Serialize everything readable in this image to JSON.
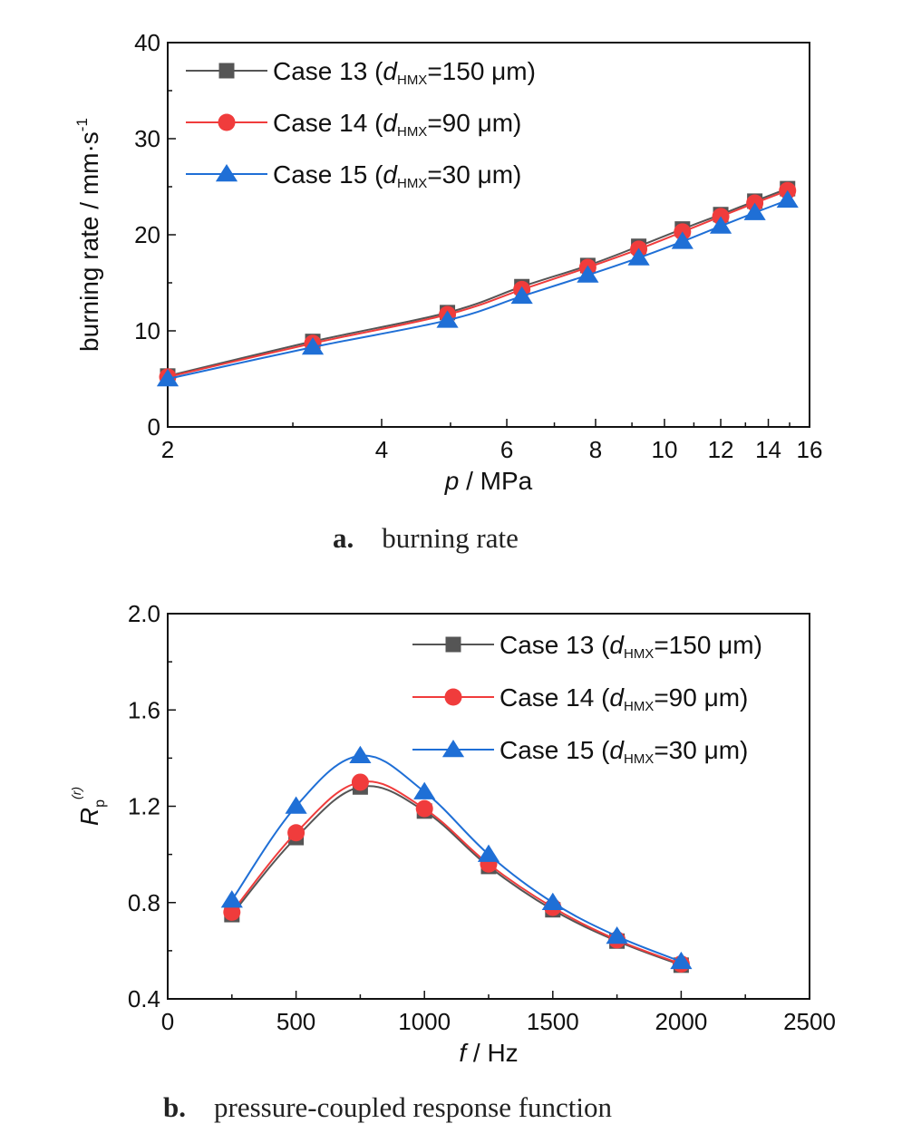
{
  "chart_data": [
    {
      "type": "line",
      "xscale": "log",
      "xlabel_var": "p",
      "xlabel_rest": " / MPa",
      "ylabel": "burning rate / mm·s",
      "ylabel_sup": "-1",
      "xlim": [
        2,
        16
      ],
      "ylim": [
        0,
        40
      ],
      "xticks": [
        2,
        4,
        6,
        8,
        10,
        12,
        14,
        16
      ],
      "yticks": [
        0,
        10,
        20,
        30,
        40
      ],
      "caption_letter": "a.",
      "caption_text": "burning rate",
      "legend_position": "top-left",
      "series": [
        {
          "name": "Case 13",
          "d_label": "d",
          "d_sub": "HMX",
          "d_value": "=150 μm)",
          "name_prefix": "Case 13 (",
          "color": "#555555",
          "marker": "square",
          "x": [
            2,
            3.2,
            4.95,
            6.3,
            7.8,
            9.2,
            10.6,
            12.0,
            13.4,
            14.9
          ],
          "y": [
            5.3,
            8.9,
            11.9,
            14.6,
            16.8,
            18.8,
            20.6,
            22.1,
            23.5,
            24.8
          ]
        },
        {
          "name": "Case 14",
          "d_label": "d",
          "d_sub": "HMX",
          "d_value": "=90 μm)",
          "name_prefix": "Case 14 (",
          "color": "#f03c3c",
          "marker": "circle",
          "x": [
            2,
            3.2,
            4.95,
            6.3,
            7.8,
            9.2,
            10.6,
            12.0,
            13.4,
            14.9
          ],
          "y": [
            5.2,
            8.7,
            11.7,
            14.3,
            16.6,
            18.5,
            20.3,
            21.9,
            23.3,
            24.6
          ]
        },
        {
          "name": "Case 15",
          "d_label": "d",
          "d_sub": "HMX",
          "d_value": "=30 μm)",
          "name_prefix": "Case 15 (",
          "color": "#1f6fd6",
          "marker": "triangle",
          "x": [
            2,
            3.2,
            4.95,
            6.3,
            7.8,
            9.2,
            10.6,
            12.0,
            13.4,
            14.9
          ],
          "y": [
            5.0,
            8.3,
            11.1,
            13.6,
            15.8,
            17.6,
            19.3,
            20.9,
            22.3,
            23.6
          ]
        }
      ]
    },
    {
      "type": "line",
      "xscale": "linear",
      "xlabel_var": "f",
      "xlabel_rest": " / Hz",
      "ylabel": "R",
      "ylabel_sub": "p",
      "ylabel_sup": "(r)",
      "xlim": [
        0,
        2500
      ],
      "ylim": [
        0.4,
        2.0
      ],
      "xticks": [
        0,
        500,
        1000,
        1500,
        2000,
        2500
      ],
      "yticks": [
        0.4,
        0.8,
        1.2,
        1.6,
        2.0
      ],
      "caption_letter": "b.",
      "caption_text": "pressure-coupled response function",
      "legend_position": "top-right",
      "series": [
        {
          "name": "Case 13",
          "d_label": "d",
          "d_sub": "HMX",
          "d_value": "=150 μm)",
          "name_prefix": "Case 13 (",
          "color": "#555555",
          "marker": "square",
          "x": [
            250,
            500,
            750,
            1000,
            1250,
            1500,
            1750,
            2000
          ],
          "y": [
            0.75,
            1.07,
            1.28,
            1.18,
            0.95,
            0.77,
            0.64,
            0.54
          ]
        },
        {
          "name": "Case 14",
          "d_label": "d",
          "d_sub": "HMX",
          "d_value": "=90 μm)",
          "name_prefix": "Case 14 (",
          "color": "#f03c3c",
          "marker": "circle",
          "x": [
            250,
            500,
            750,
            1000,
            1250,
            1500,
            1750,
            2000
          ],
          "y": [
            0.76,
            1.09,
            1.3,
            1.19,
            0.96,
            0.78,
            0.645,
            0.545
          ]
        },
        {
          "name": "Case 15",
          "d_label": "d",
          "d_sub": "HMX",
          "d_value": "=30 μm)",
          "name_prefix": "Case 15 (",
          "color": "#1f6fd6",
          "marker": "triangle",
          "x": [
            250,
            500,
            750,
            1000,
            1250,
            1500,
            1750,
            2000
          ],
          "y": [
            0.81,
            1.2,
            1.41,
            1.26,
            1.0,
            0.8,
            0.66,
            0.555
          ]
        }
      ]
    }
  ]
}
